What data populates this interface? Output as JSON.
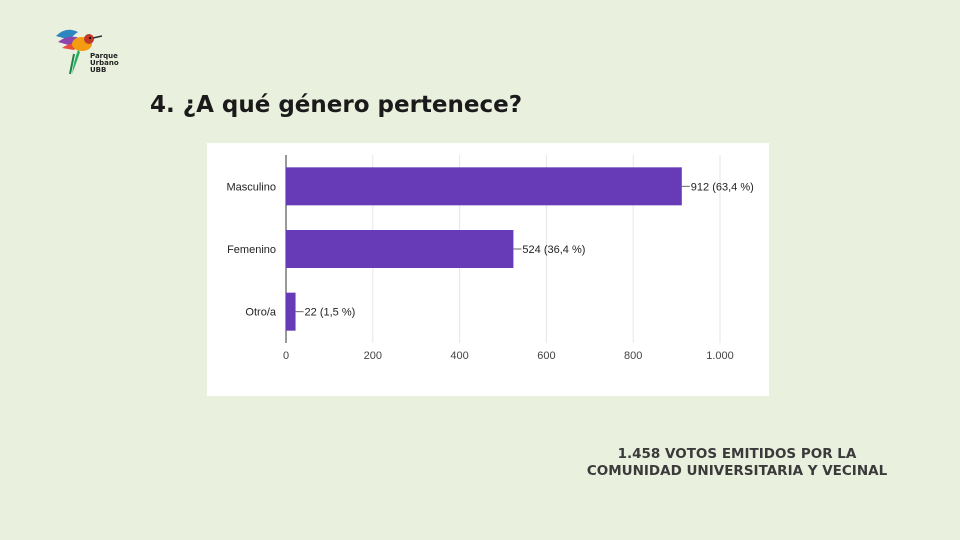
{
  "logo": {
    "icon": "hummingbird-icon",
    "lines": [
      "Parque",
      "Urbano",
      "UBB"
    ]
  },
  "title": "4. ¿A qué género pertenece?",
  "chart_data": {
    "type": "bar",
    "orientation": "horizontal",
    "categories": [
      "Masculino",
      "Femenino",
      "Otro/a"
    ],
    "values": [
      912,
      524,
      22
    ],
    "data_labels": [
      "912 (63,4 %)",
      "524 (36,4 %)",
      "22 (1,5 %)"
    ],
    "xlim": [
      0,
      1000
    ],
    "xticks": [
      0,
      200,
      400,
      600,
      800,
      1000
    ],
    "xtick_labels": [
      "0",
      "200",
      "400",
      "600",
      "800",
      "1.000"
    ],
    "grid": true,
    "bar_color": "#673ab7"
  },
  "footer": {
    "line1": "1.458 VOTOS EMITIDOS POR LA",
    "line2": "COMUNIDAD UNIVERSITARIA Y VECINAL"
  }
}
